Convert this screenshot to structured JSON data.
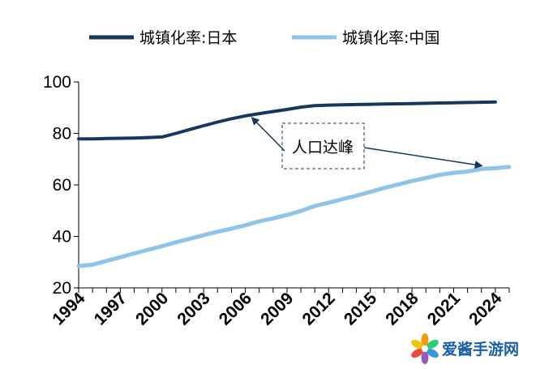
{
  "chart_data": {
    "type": "line",
    "title": "",
    "xlabel": "",
    "ylabel": "",
    "ylim": [
      20,
      100
    ],
    "xlim": [
      1994,
      2025
    ],
    "yticks": [
      20,
      40,
      60,
      80,
      100
    ],
    "xticks": [
      1994,
      1997,
      2000,
      2003,
      2006,
      2009,
      2012,
      2015,
      2018,
      2021,
      2024
    ],
    "grid": false,
    "legend_position": "top",
    "series": [
      {
        "name": "城镇化率:日本",
        "color": "#17375e",
        "x": [
          1994,
          1995,
          1996,
          1997,
          1998,
          1999,
          2000,
          2001,
          2002,
          2003,
          2004,
          2005,
          2006,
          2007,
          2008,
          2009,
          2010,
          2011,
          2012,
          2013,
          2014,
          2015,
          2016,
          2017,
          2018,
          2019,
          2020,
          2021,
          2022,
          2023,
          2024
        ],
        "values": [
          77.9,
          77.9,
          78.0,
          78.1,
          78.2,
          78.4,
          78.6,
          80.0,
          81.5,
          83.0,
          84.4,
          85.7,
          86.8,
          87.7,
          88.5,
          89.3,
          90.2,
          90.8,
          91.0,
          91.1,
          91.2,
          91.3,
          91.4,
          91.5,
          91.6,
          91.7,
          91.8,
          91.9,
          92.0,
          92.1,
          92.2
        ]
      },
      {
        "name": "城镇化率:中国",
        "color": "#8fc3ea",
        "x": [
          1994,
          1995,
          1996,
          1997,
          1998,
          1999,
          2000,
          2001,
          2002,
          2003,
          2004,
          2005,
          2006,
          2007,
          2008,
          2009,
          2010,
          2011,
          2012,
          2013,
          2014,
          2015,
          2016,
          2017,
          2018,
          2019,
          2020,
          2021,
          2022,
          2023,
          2024,
          2025
        ],
        "values": [
          28.5,
          29.0,
          30.5,
          31.9,
          33.4,
          34.8,
          36.2,
          37.7,
          39.1,
          40.5,
          41.8,
          43.0,
          44.3,
          45.9,
          47.0,
          48.3,
          49.9,
          51.8,
          53.1,
          54.5,
          55.8,
          57.3,
          58.8,
          60.2,
          61.5,
          62.7,
          63.9,
          64.7,
          65.2,
          66.2,
          66.5,
          67.0
        ]
      }
    ],
    "annotation": {
      "text": "人口达峰",
      "arrow_to": [
        {
          "series": 0,
          "x": 2006.5
        },
        {
          "series": 1,
          "x": 2023
        }
      ]
    }
  },
  "watermark": {
    "text": "爱酱手游网",
    "icon": "flower-logo-icon"
  }
}
